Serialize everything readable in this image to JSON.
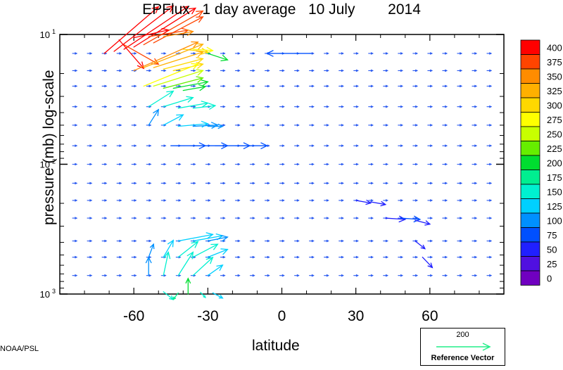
{
  "chart_data": {
    "type": "vector-field",
    "title_parts": [
      "EPFlux",
      "1 day average",
      "10 July",
      "2014"
    ],
    "xlabel": "latitude",
    "ylabel": "pressure (mb)  log-scale",
    "x_range": [
      -90,
      90
    ],
    "x_ticks": [
      -60,
      -30,
      0,
      30,
      60
    ],
    "y_scale": "log",
    "y_range": [
      1000,
      10
    ],
    "y_ticks": [
      {
        "base": "10",
        "exp": "1",
        "value": 10
      },
      {
        "base": "10",
        "exp": "2",
        "value": 100
      },
      {
        "base": "10",
        "exp": "3",
        "value": 1000
      }
    ],
    "colorbar": {
      "levels": [
        "400",
        "375",
        "350",
        "325",
        "300",
        "275",
        "250",
        "225",
        "200",
        "175",
        "150",
        "125",
        "100",
        "75",
        "50",
        "25",
        "0"
      ],
      "colors": [
        "#ff0000",
        "#ff4400",
        "#ff8c00",
        "#ffb000",
        "#ffd800",
        "#ffff00",
        "#c8ff00",
        "#66ee00",
        "#00dd30",
        "#00ee90",
        "#00f0d0",
        "#00d0ff",
        "#0090ff",
        "#0050ff",
        "#2020ff",
        "#5010e0",
        "#7000c0"
      ]
    },
    "reference_vector": {
      "value": "200",
      "label": "Reference Vector",
      "color": "#22ee88"
    },
    "credit": "NOAA/PSL",
    "vectors": [
      {
        "lat": -72,
        "p": 14,
        "dlat": 22,
        "dp": -0.36,
        "mag": 400
      },
      {
        "lat": -68,
        "p": 13.5,
        "dlat": 24,
        "dp": -0.35,
        "mag": 400
      },
      {
        "lat": -64,
        "p": 13,
        "dlat": 26,
        "dp": -0.33,
        "mag": 400
      },
      {
        "lat": -60,
        "p": 12.5,
        "dlat": 25,
        "dp": -0.3,
        "mag": 400
      },
      {
        "lat": -56,
        "p": 12,
        "dlat": 24,
        "dp": -0.26,
        "mag": 390
      },
      {
        "lat": -52,
        "p": 11.6,
        "dlat": 20,
        "dp": -0.2,
        "mag": 380
      },
      {
        "lat": -60,
        "p": 10.6,
        "dlat": 14,
        "dp": -0.06,
        "mag": 400
      },
      {
        "lat": -54,
        "p": 10.4,
        "dlat": 16,
        "dp": -0.05,
        "mag": 390
      },
      {
        "lat": -48,
        "p": 10.4,
        "dlat": 12,
        "dp": -0.04,
        "mag": 360
      },
      {
        "lat": -64,
        "p": 12,
        "dlat": 14,
        "dp": 0.15,
        "mag": 380
      },
      {
        "lat": -66,
        "p": 11,
        "dlat": 10,
        "dp": 0.22,
        "mag": 400
      },
      {
        "lat": -40,
        "p": 13,
        "dlat": 10,
        "dp": 0.02,
        "mag": 320
      },
      {
        "lat": -36,
        "p": 13,
        "dlat": 8,
        "dp": 0.01,
        "mag": 280
      },
      {
        "lat": -60,
        "p": 19,
        "dlat": 26,
        "dp": -0.22,
        "mag": 360
      },
      {
        "lat": -56,
        "p": 18,
        "dlat": 24,
        "dp": -0.18,
        "mag": 340
      },
      {
        "lat": -52,
        "p": 18,
        "dlat": 20,
        "dp": -0.12,
        "mag": 330
      },
      {
        "lat": -48,
        "p": 18.5,
        "dlat": 16,
        "dp": -0.08,
        "mag": 320
      },
      {
        "lat": -44,
        "p": 19,
        "dlat": 12,
        "dp": -0.05,
        "mag": 300
      },
      {
        "lat": -56,
        "p": 25,
        "dlat": 22,
        "dp": -0.17,
        "mag": 280
      },
      {
        "lat": -52,
        "p": 25,
        "dlat": 20,
        "dp": -0.12,
        "mag": 260
      },
      {
        "lat": -48,
        "p": 26,
        "dlat": 16,
        "dp": -0.08,
        "mag": 240
      },
      {
        "lat": -44,
        "p": 26,
        "dlat": 14,
        "dp": -0.05,
        "mag": 220
      },
      {
        "lat": -40,
        "p": 27,
        "dlat": 9,
        "dp": -0.03,
        "mag": 200
      },
      {
        "lat": -54,
        "p": 36,
        "dlat": 10,
        "dp": -0.12,
        "mag": 160
      },
      {
        "lat": -48,
        "p": 36,
        "dlat": 12,
        "dp": -0.07,
        "mag": 170
      },
      {
        "lat": -42,
        "p": 37,
        "dlat": 12,
        "dp": -0.04,
        "mag": 170
      },
      {
        "lat": -36,
        "p": 37,
        "dlat": 9,
        "dp": -0.02,
        "mag": 160
      },
      {
        "lat": -54,
        "p": 50,
        "dlat": 4,
        "dp": -0.12,
        "mag": 120
      },
      {
        "lat": -48,
        "p": 50,
        "dlat": 8,
        "dp": -0.08,
        "mag": 140
      },
      {
        "lat": -42,
        "p": 51,
        "dlat": 12,
        "dp": -0.02,
        "mag": 130
      },
      {
        "lat": -36,
        "p": 51,
        "dlat": 10,
        "dp": -0.01,
        "mag": 120
      },
      {
        "lat": -30,
        "p": 51,
        "dlat": 6,
        "dp": 0,
        "mag": 110
      },
      {
        "lat": -45,
        "p": 72,
        "dlat": 14,
        "dp": 0,
        "mag": 90
      },
      {
        "lat": -36,
        "p": 72,
        "dlat": 14,
        "dp": 0,
        "mag": 90
      },
      {
        "lat": -27,
        "p": 72,
        "dlat": 14,
        "dp": 0,
        "mag": 90
      },
      {
        "lat": -18,
        "p": 72,
        "dlat": 12,
        "dp": 0,
        "mag": 80
      },
      {
        "lat": 12,
        "p": 14,
        "dlat": -18,
        "dp": 0,
        "mag": 95
      },
      {
        "lat": -30,
        "p": 14,
        "dlat": 8,
        "dp": 0.05,
        "mag": 200
      },
      {
        "lat": -42,
        "p": 390,
        "dlat": 14,
        "dp": -0.05,
        "mag": 130
      },
      {
        "lat": -36,
        "p": 390,
        "dlat": 12,
        "dp": -0.04,
        "mag": 130
      },
      {
        "lat": -30,
        "p": 390,
        "dlat": 8,
        "dp": -0.03,
        "mag": 120
      },
      {
        "lat": -54,
        "p": 520,
        "dlat": 2,
        "dp": -0.1,
        "mag": 110
      },
      {
        "lat": -48,
        "p": 520,
        "dlat": 4,
        "dp": -0.13,
        "mag": 130
      },
      {
        "lat": -42,
        "p": 520,
        "dlat": 8,
        "dp": -0.12,
        "mag": 150
      },
      {
        "lat": -36,
        "p": 520,
        "dlat": 10,
        "dp": -0.1,
        "mag": 150
      },
      {
        "lat": -30,
        "p": 520,
        "dlat": 8,
        "dp": -0.06,
        "mag": 130
      },
      {
        "lat": -54,
        "p": 720,
        "dlat": 0,
        "dp": -0.14,
        "mag": 120
      },
      {
        "lat": -48,
        "p": 720,
        "dlat": 2,
        "dp": -0.18,
        "mag": 150
      },
      {
        "lat": -42,
        "p": 720,
        "dlat": 6,
        "dp": -0.18,
        "mag": 170
      },
      {
        "lat": -36,
        "p": 720,
        "dlat": 8,
        "dp": -0.14,
        "mag": 160
      },
      {
        "lat": -30,
        "p": 720,
        "dlat": 6,
        "dp": -0.08,
        "mag": 130
      },
      {
        "lat": -48,
        "p": 960,
        "dlat": 4,
        "dp": 0.06,
        "mag": 160
      },
      {
        "lat": -42,
        "p": 980,
        "dlat": -2,
        "dp": 0.05,
        "mag": 180
      },
      {
        "lat": -38,
        "p": 1000,
        "dlat": 0,
        "dp": -0.12,
        "mag": 220
      },
      {
        "lat": -33,
        "p": 970,
        "dlat": 2,
        "dp": 0.04,
        "mag": 150
      },
      {
        "lat": -28,
        "p": 980,
        "dlat": 4,
        "dp": 0.04,
        "mag": 140
      },
      {
        "lat": 30,
        "p": 190,
        "dlat": 6,
        "dp": 0.02,
        "mag": 60
      },
      {
        "lat": 36,
        "p": 195,
        "dlat": 6,
        "dp": 0.02,
        "mag": 60
      },
      {
        "lat": 42,
        "p": 260,
        "dlat": 8,
        "dp": 0.01,
        "mag": 70
      },
      {
        "lat": 48,
        "p": 260,
        "dlat": 8,
        "dp": 0.01,
        "mag": 75
      },
      {
        "lat": 54,
        "p": 270,
        "dlat": 6,
        "dp": 0.03,
        "mag": 70
      },
      {
        "lat": 54,
        "p": 390,
        "dlat": 4,
        "dp": 0.06,
        "mag": 70
      },
      {
        "lat": 57,
        "p": 520,
        "dlat": 4,
        "dp": 0.08,
        "mag": 70
      }
    ]
  }
}
